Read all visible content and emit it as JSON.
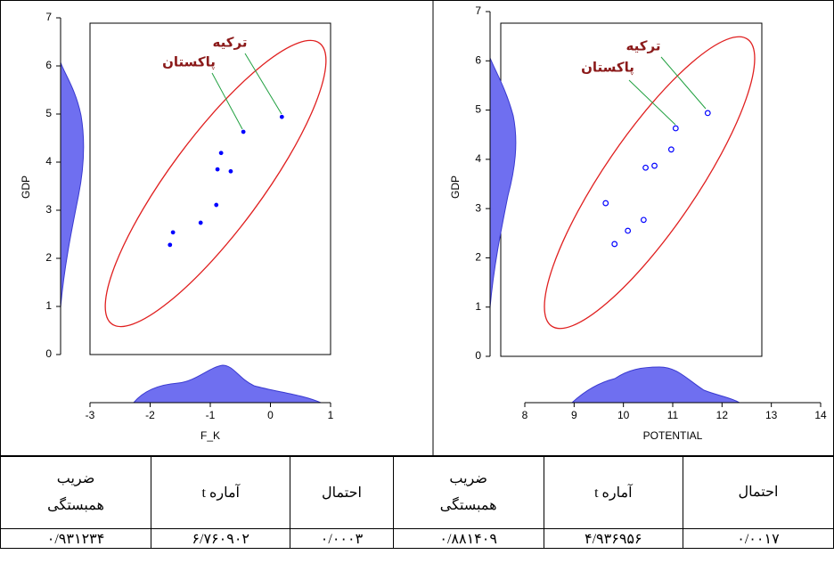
{
  "chart_data": [
    {
      "type": "scatter",
      "x_label": "F_K",
      "y_label": "GDP",
      "color": "#0000ff",
      "marker": "filled",
      "x": [
        0.19,
        -0.45,
        -0.82,
        -0.88,
        -0.66,
        -0.9,
        -1.16,
        -1.62,
        -1.67
      ],
      "y": [
        4.94,
        4.63,
        4.19,
        3.85,
        3.81,
        3.11,
        2.74,
        2.54,
        2.28
      ],
      "xlim": [
        -3,
        1
      ],
      "xticks": [
        -3,
        -2,
        -1,
        0,
        1
      ],
      "ylim": [
        0,
        7
      ],
      "yticks": [
        0,
        1,
        2,
        3,
        4,
        5,
        6,
        7
      ],
      "annotations": [
        "ترکیه",
        "پاکستان"
      ]
    },
    {
      "type": "scatter",
      "x_label": "POTENTIAL",
      "y_label": "GDP",
      "color": "#0000ff",
      "marker": "hollow",
      "x": [
        11.71,
        11.06,
        10.97,
        10.63,
        10.45,
        9.64,
        10.41,
        10.09,
        9.82
      ],
      "y": [
        4.94,
        4.63,
        4.2,
        3.87,
        3.83,
        3.11,
        2.77,
        2.55,
        2.28
      ],
      "xlim": [
        8,
        14
      ],
      "xticks": [
        8,
        9,
        10,
        11,
        12,
        13,
        14
      ],
      "ylim": [
        0,
        7
      ],
      "yticks": [
        0,
        1,
        2,
        3,
        4,
        5,
        6,
        7
      ],
      "annotations": [
        "ترکیه",
        "پاکستان"
      ]
    }
  ],
  "table": {
    "header": [
      "ضریب همبستگی",
      "آماره t",
      "احتمال",
      "ضریب همبستگی",
      "آماره t",
      "احتمال"
    ],
    "rows": [
      [
        "۰/۹۳۱۲۳۴",
        "۶/۷۶۰۹۰۲",
        "۰/۰۰۰۳",
        "۰/۸۸۱۴۰۹",
        "۴/۹۳۶۹۵۶",
        "۰/۰۰۱۷"
      ]
    ]
  }
}
